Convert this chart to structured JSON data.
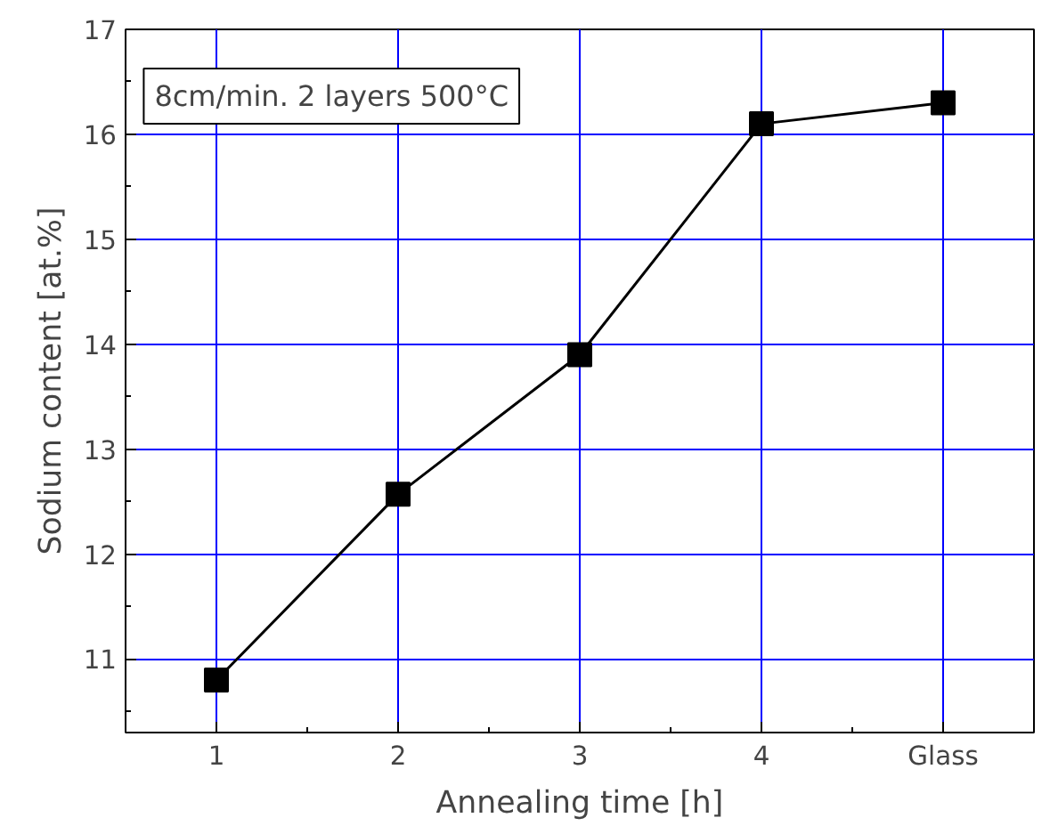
{
  "chart_data": {
    "type": "line",
    "xlabel": "Annealing time [h]",
    "ylabel": "Sodium content [at.%]",
    "categories": [
      "1",
      "2",
      "3",
      "4",
      "Glass"
    ],
    "values": [
      10.8,
      12.57,
      13.9,
      16.1,
      16.3
    ],
    "color": "#000000",
    "marker": "square",
    "line_style": "solid",
    "ylim": [
      10.3,
      17
    ],
    "yticks": [
      11,
      12,
      13,
      14,
      15,
      16,
      17
    ],
    "grid": true,
    "annotations": [
      "8cm/min. 2 layers 500°C"
    ]
  }
}
